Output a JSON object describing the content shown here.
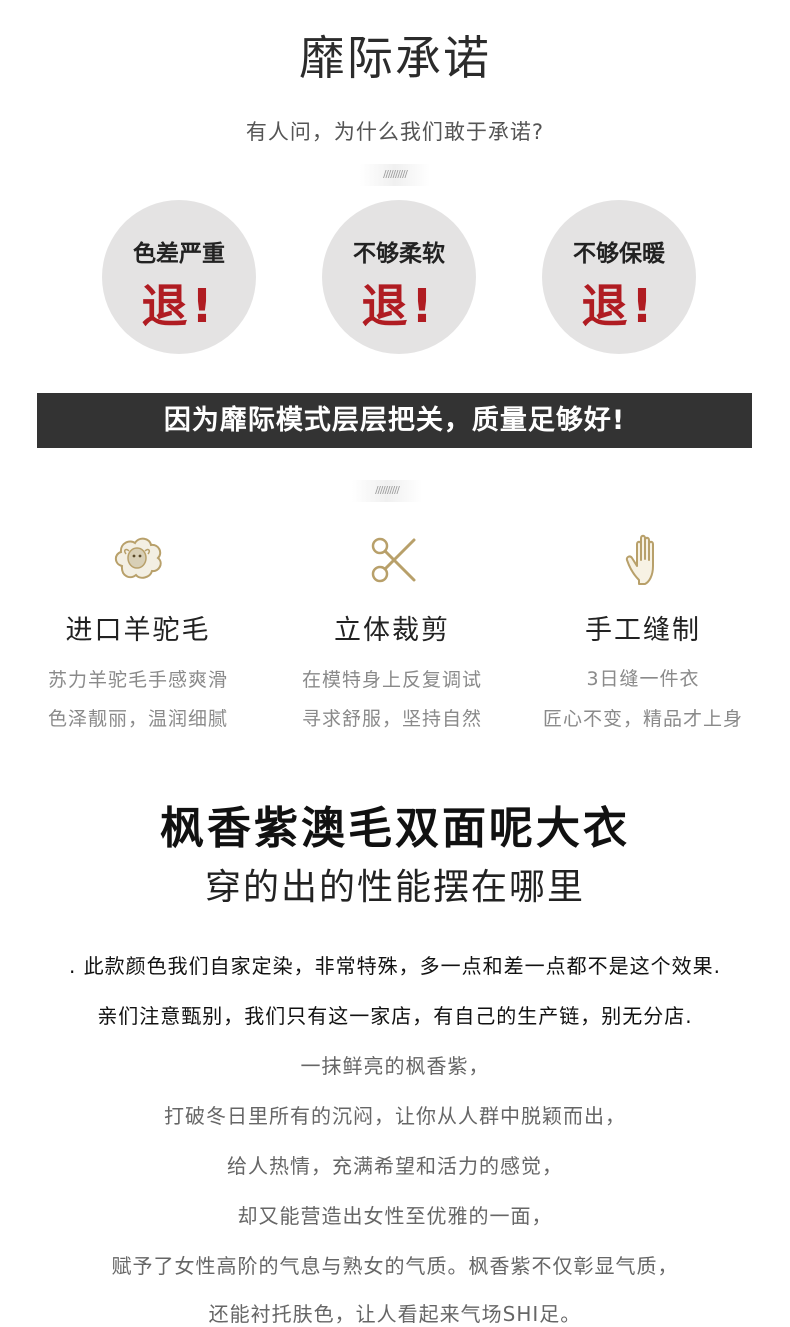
{
  "header": {
    "title": "靡际承诺",
    "subtitle": "有人问，为什么我们敢于承诺?",
    "divider_text": "//////////"
  },
  "promises": [
    {
      "condition": "色差严重",
      "result": "退!"
    },
    {
      "condition": "不够柔软",
      "result": "退!"
    },
    {
      "condition": "不够保暖",
      "result": "退!"
    }
  ],
  "banner": {
    "text": "因为靡际模式层层把关，质量足够好!"
  },
  "features": [
    {
      "icon": "sheep-icon",
      "title": "进口羊驼毛",
      "line1": "苏力羊驼毛手感爽滑",
      "line2": "色泽靓丽，温润细腻"
    },
    {
      "icon": "scissors-icon",
      "title": "立体裁剪",
      "line1": "在模特身上反复调试",
      "line2": "寻求舒服，坚持自然"
    },
    {
      "icon": "hand-icon",
      "title": "手工缝制",
      "line1": "3日缝一件衣",
      "line2": "匠心不变，精品才上身"
    }
  ],
  "product": {
    "title": "枫香紫澳毛双面呢大衣",
    "subtitle": "穿的出的性能摆在哪里"
  },
  "description": [
    ". 此款颜色我们自家定染，非常特殊，多一点和差一点都不是这个效果.",
    "亲们注意甄别，我们只有这一家店，有自己的生产链，别无分店.",
    "一抹鲜亮的枫香紫，",
    "打破冬日里所有的沉闷，让你从人群中脱颖而出，",
    "给人热情，充满希望和活力的感觉，",
    "却又能营造出女性至优雅的一面，",
    "赋予了女性高阶的气息与熟女的气质。枫香紫不仅彰显气质，",
    "还能衬托肤色，让人看起来气场SHI足。"
  ],
  "colors": {
    "accent_red": "#b01c22",
    "banner_bg": "#333333",
    "circle_bg": "#e4e3e3",
    "icon_gold": "#b8a06a"
  }
}
